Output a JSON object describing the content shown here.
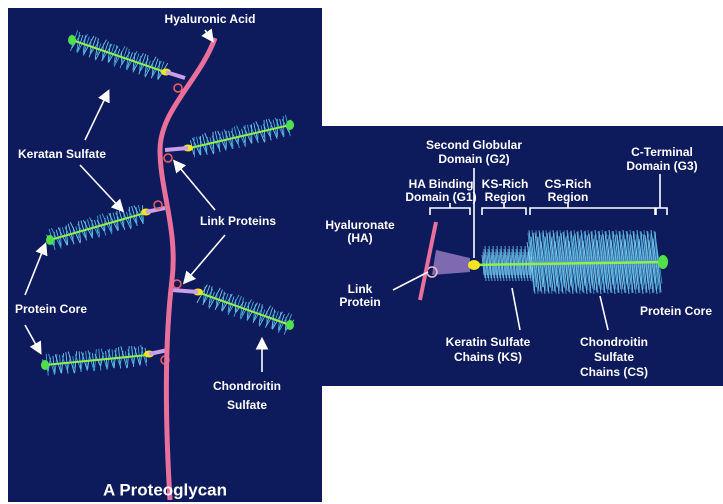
{
  "left_panel": {
    "title": "A Proteoglycan",
    "labels": [
      {
        "lines": [
          "Hyaluronic Acid"
        ]
      },
      {
        "lines": [
          "Keratan Sulfate"
        ]
      },
      {
        "lines": [
          "Link Proteins"
        ]
      },
      {
        "lines": [
          "Protein Core"
        ]
      },
      {
        "lines": [
          "Chondroitin",
          "Sulfate"
        ]
      }
    ]
  },
  "right_panel": {
    "labels": [
      {
        "lines": [
          "Second Globular",
          "Domain (G2)"
        ]
      },
      {
        "lines": [
          "C-Terminal",
          "Domain (G3)"
        ]
      },
      {
        "lines": [
          "HA Binding",
          "Domain (G1)"
        ]
      },
      {
        "lines": [
          "KS-Rich",
          "Region"
        ]
      },
      {
        "lines": [
          "CS-Rich",
          "Region"
        ]
      },
      {
        "lines": [
          "Hyaluronate",
          "(HA)"
        ]
      },
      {
        "lines": [
          "Link",
          "Protein"
        ]
      },
      {
        "lines": [
          "Protein Core"
        ]
      },
      {
        "lines": [
          "Keratin Sulfate",
          "Chains (KS)"
        ]
      },
      {
        "lines": [
          "Chondroitin",
          "Sulfate",
          "Chains (CS)"
        ]
      }
    ]
  }
}
